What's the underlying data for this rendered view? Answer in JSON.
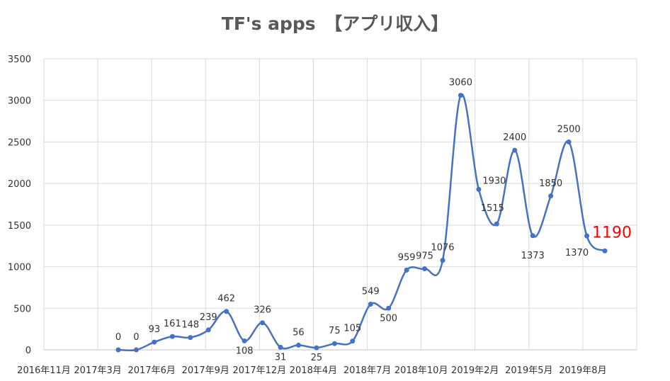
{
  "chart_data": {
    "type": "line",
    "title": "TF's apps　【アプリ収入】",
    "xlabel": "",
    "ylabel": "",
    "ylim": [
      0,
      3500
    ],
    "yticks": [
      0,
      500,
      1000,
      1500,
      2000,
      2500,
      3000,
      3500
    ],
    "xticks": [
      "2016年11月",
      "2017年3月",
      "2017年6月",
      "2017年9月",
      "2017年12月",
      "2018年4月",
      "2018年7月",
      "2018年10月",
      "2019年2月",
      "2019年5月",
      "2019年8月"
    ],
    "grid": true,
    "smooth": true,
    "line_color": "#4472C4",
    "highlight_color": "#FF0000",
    "series": [
      {
        "values": [
          0,
          0,
          93,
          161,
          148,
          239,
          462,
          108,
          326,
          31,
          56,
          25,
          75,
          105,
          549,
          500,
          959,
          975,
          1076,
          3060,
          1930,
          1515,
          2400,
          1373,
          1850,
          2500,
          1370,
          1190
        ],
        "labels": [
          "0",
          "0",
          "93",
          "161",
          "148",
          "239",
          "462",
          "108",
          "326",
          "31",
          "56",
          "25",
          "75",
          "105",
          "549",
          "500",
          "959",
          "975",
          "1076",
          "3060",
          "1930",
          "1515",
          "2400",
          "1373",
          "1850",
          "2500",
          "1370",
          "1190"
        ]
      }
    ],
    "highlight_index": 27
  }
}
